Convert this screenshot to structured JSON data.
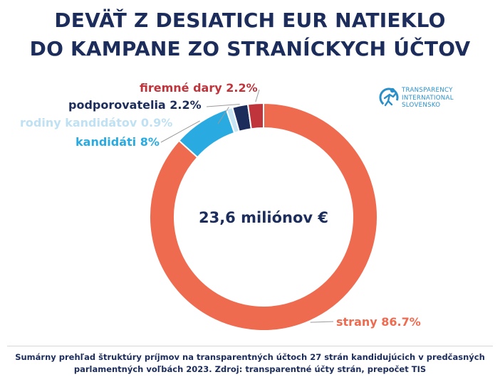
{
  "title": {
    "line1": "DEVÄŤ Z DESIATICH EUR NATIEKLO",
    "line2": "DO KAMPANE ZO STRANÍCKYCH ÚČTOV"
  },
  "logo": {
    "icon": "transparency-international-icon",
    "line1": "TRANSPARENCY",
    "line2": "INTERNATIONAL",
    "line3": "SLOVENSKO"
  },
  "chart_data": {
    "type": "pie",
    "style": "donut",
    "center_label": "23,6 miliónov €",
    "slices": [
      {
        "name": "strany",
        "value": 86.7,
        "label": "strany 86.7%",
        "color": "#ef6b50"
      },
      {
        "name": "kandidáti",
        "value": 8.0,
        "label": "kandidáti 8%",
        "color": "#29abe2"
      },
      {
        "name": "rodiny kandidátov",
        "value": 0.9,
        "label": "rodiny kandidátov 0.9%",
        "color": "#c6e6f6"
      },
      {
        "name": "podporovatelia",
        "value": 2.2,
        "label": "podporovatelia 2.2%",
        "color": "#1c2d5c"
      },
      {
        "name": "firemné dary",
        "value": 2.2,
        "label": "firemné dary 2.2%",
        "color": "#c0343c"
      }
    ]
  },
  "caption": {
    "line1": "Sumárny prehľad štruktúry príjmov na transparentných účtoch 27 strán kandidujúcich v predčasných",
    "line2": "parlamentných voľbách 2023. Zdroj: transparentné účty strán, prepočet TIS"
  }
}
